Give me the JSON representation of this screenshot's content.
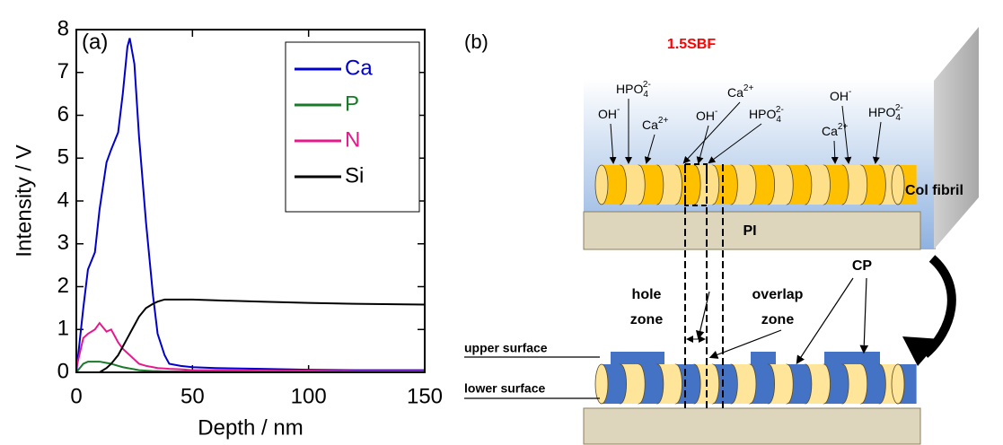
{
  "chart_data": {
    "type": "line",
    "panel_label": "(a)",
    "xlabel": "Depth / nm",
    "ylabel": "Intensity / V",
    "x": [
      0,
      3,
      5,
      8,
      10,
      13,
      15,
      18,
      20,
      22,
      23,
      25,
      27,
      30,
      33,
      35,
      38,
      40,
      45,
      50,
      60,
      80,
      100,
      120,
      150
    ],
    "series": [
      {
        "name": "Ca",
        "color": "#0000cc",
        "values": [
          0,
          1.5,
          2.4,
          2.8,
          3.8,
          4.9,
          5.2,
          5.6,
          6.5,
          7.6,
          7.8,
          7.2,
          5.5,
          3.5,
          1.8,
          0.9,
          0.4,
          0.2,
          0.15,
          0.12,
          0.1,
          0.08,
          0.06,
          0.05,
          0.05
        ]
      },
      {
        "name": "P",
        "color": "#1a7a2a",
        "values": [
          0,
          0.2,
          0.25,
          0.25,
          0.25,
          0.22,
          0.2,
          0.15,
          0.12,
          0.1,
          0.09,
          0.07,
          0.05,
          0.04,
          0.03,
          0.03,
          0.02,
          0.02,
          0.02,
          0.02,
          0.01,
          0.01,
          0.01,
          0.01,
          0.01
        ]
      },
      {
        "name": "N",
        "color": "#e6198c",
        "values": [
          0.1,
          0.8,
          0.9,
          1.0,
          1.15,
          0.95,
          1.0,
          0.7,
          0.55,
          0.45,
          0.4,
          0.3,
          0.2,
          0.15,
          0.12,
          0.1,
          0.09,
          0.08,
          0.07,
          0.05,
          0.05,
          0.04,
          0.04,
          0.03,
          0.03
        ]
      },
      {
        "name": "Si",
        "color": "#000000",
        "values": [
          0,
          0,
          0,
          0,
          0,
          0.1,
          0.2,
          0.4,
          0.6,
          0.8,
          0.9,
          1.1,
          1.3,
          1.5,
          1.6,
          1.65,
          1.7,
          1.7,
          1.7,
          1.7,
          1.68,
          1.65,
          1.62,
          1.6,
          1.58
        ]
      }
    ],
    "xlim": [
      0,
      150
    ],
    "xticks": [
      0,
      50,
      100,
      150
    ],
    "ylim": [
      0,
      8
    ],
    "yticks": [
      0,
      1,
      2,
      3,
      4,
      5,
      6,
      7,
      8
    ],
    "legend": "upper-right"
  },
  "diagram": {
    "panel_label": "(b)",
    "solution": "1.5SBF",
    "ions": [
      {
        "text": "HPO",
        "sub": "4",
        "sup": "2-"
      },
      {
        "text": "OH",
        "sup": "-"
      },
      {
        "text": "Ca",
        "sup": "2+"
      },
      {
        "text": "OH",
        "sup": "-"
      },
      {
        "text": "Ca",
        "sup": "2+"
      },
      {
        "text": "HPO",
        "sub": "4",
        "sup": "2-"
      },
      {
        "text": "OH",
        "sup": "-"
      },
      {
        "text": "Ca",
        "sup": "2+"
      },
      {
        "text": "HPO",
        "sub": "4",
        "sup": "2-"
      }
    ],
    "fibril_label": "Col fibril",
    "substrate_label": "PI",
    "hole_zone": [
      "hole",
      "zone"
    ],
    "overlap_zone": [
      "overlap",
      "zone"
    ],
    "cp_label": "CP",
    "upper_surface": "upper surface",
    "lower_surface": "lower surface"
  }
}
